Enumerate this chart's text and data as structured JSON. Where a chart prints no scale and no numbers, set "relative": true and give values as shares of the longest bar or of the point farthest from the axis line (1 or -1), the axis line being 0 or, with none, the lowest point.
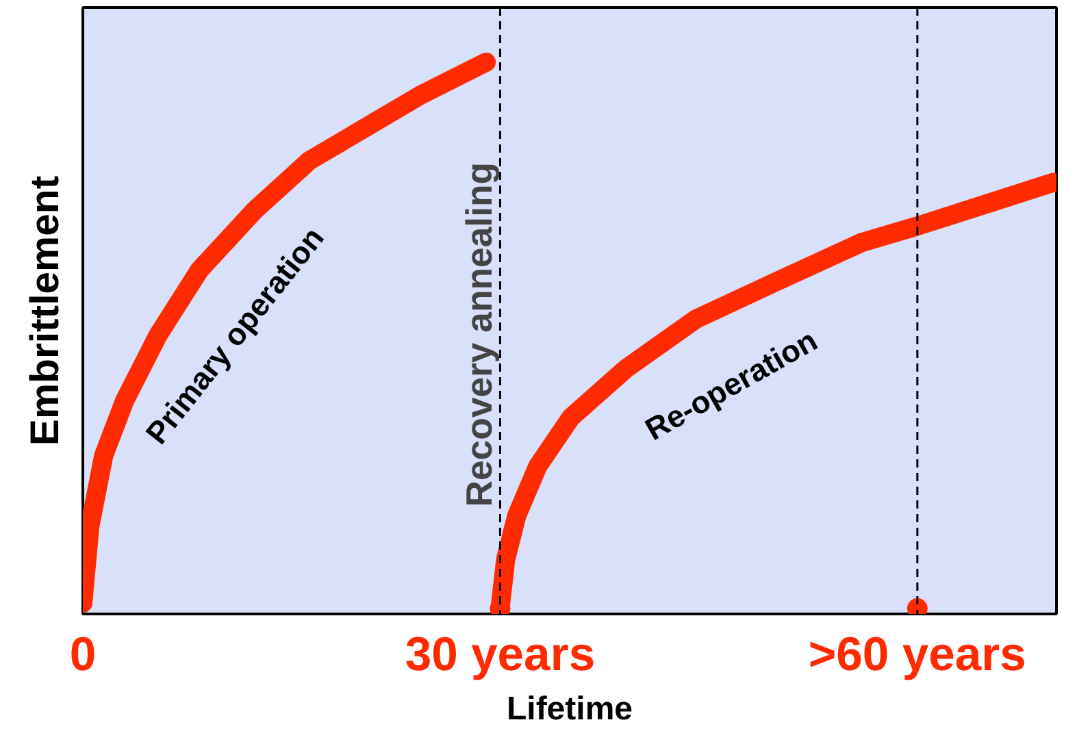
{
  "chart_data": {
    "type": "line",
    "relative": true,
    "xlabel": "Lifetime",
    "ylabel": "Embrittlement",
    "xlim": [
      0,
      70
    ],
    "xticks": [
      0,
      {
        "value": 30,
        "label": "30 years"
      },
      {
        "value": 60,
        "label": ">60 years"
      }
    ],
    "grid": false,
    "line_style": "solid",
    "series": [
      {
        "name": "Primary operation",
        "color": "#ff2a00",
        "x": [
          0,
          0.5,
          1.5,
          3,
          5.4,
          8.4,
          12.4,
          16.3,
          20.3,
          24.3,
          29.0
        ],
        "values": [
          0.01,
          0.15,
          0.28,
          0.38,
          0.5,
          0.62,
          0.73,
          0.82,
          0.88,
          0.94,
          1.0
        ]
      },
      {
        "name": "Re-operation",
        "color": "#ff2a00",
        "x": [
          30,
          30.4,
          31.2,
          32.7,
          35.1,
          39.1,
          44.1,
          50.0,
          56.0,
          60.0,
          64.9,
          69.8
        ],
        "values": [
          0,
          0.09,
          0.17,
          0.26,
          0.35,
          0.44,
          0.53,
          0.6,
          0.67,
          0.7,
          0.74,
          0.78
        ]
      },
      {
        "type": "scatter",
        "marker": "circle",
        "color": "#ff2a00",
        "x": [
          30,
          60
        ],
        "values": [
          0,
          0
        ]
      }
    ],
    "ref_lines": [
      {
        "axis": "x",
        "value": 30,
        "label": "Recovery   annealing",
        "color": "#000000",
        "line_style": "dashed"
      },
      {
        "axis": "x",
        "value": 60,
        "color": "#000000",
        "line_style": "dashed"
      }
    ]
  }
}
